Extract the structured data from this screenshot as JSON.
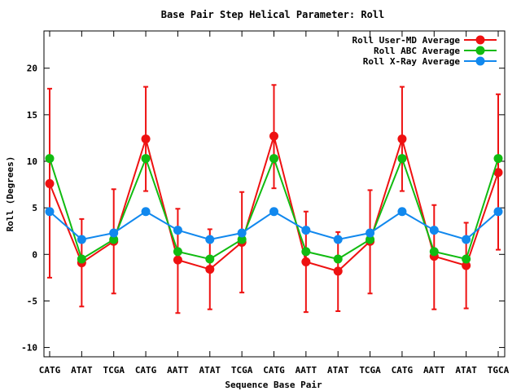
{
  "chart_data": {
    "type": "line",
    "title": "Base Pair Step Helical Parameter: Roll",
    "xlabel": "Sequence Base Pair",
    "ylabel": "Roll (Degrees)",
    "categories": [
      "CATG",
      "ATAT",
      "TCGA",
      "CATG",
      "AATT",
      "ATAT",
      "TCGA",
      "CATG",
      "AATT",
      "ATAT",
      "TCGA",
      "CATG",
      "AATT",
      "ATAT",
      "TGCA"
    ],
    "ylim": [
      -11,
      24
    ],
    "yticks": [
      -10,
      -5,
      0,
      5,
      10,
      15,
      20
    ],
    "legend_position": "top-right",
    "series": [
      {
        "name": "Roll User-MD Average",
        "color": "#ee1111",
        "values": [
          7.6,
          -0.9,
          1.4,
          12.4,
          -0.6,
          -1.6,
          1.3,
          12.7,
          -0.8,
          -1.8,
          1.4,
          12.4,
          -0.2,
          -1.2,
          8.8
        ],
        "err_low": [
          -2.5,
          -5.6,
          -4.2,
          6.8,
          -6.3,
          -5.9,
          -4.1,
          7.1,
          -6.2,
          -6.1,
          -4.2,
          6.8,
          -5.9,
          -5.8,
          0.5
        ],
        "err_high": [
          17.8,
          3.8,
          7.0,
          18.0,
          4.9,
          2.7,
          6.7,
          18.2,
          4.6,
          2.4,
          6.9,
          18.0,
          5.3,
          3.4,
          17.2
        ]
      },
      {
        "name": "Roll ABC Average",
        "color": "#11bb11",
        "values": [
          10.3,
          -0.5,
          1.6,
          10.3,
          0.3,
          -0.5,
          1.6,
          10.3,
          0.3,
          -0.5,
          1.6,
          10.3,
          0.3,
          -0.5,
          10.3
        ]
      },
      {
        "name": "Roll X-Ray Average",
        "color": "#1188ee",
        "values": [
          4.6,
          1.6,
          2.3,
          4.6,
          2.6,
          1.6,
          2.3,
          4.6,
          2.6,
          1.6,
          2.3,
          4.6,
          2.6,
          1.6,
          4.6
        ]
      }
    ]
  }
}
